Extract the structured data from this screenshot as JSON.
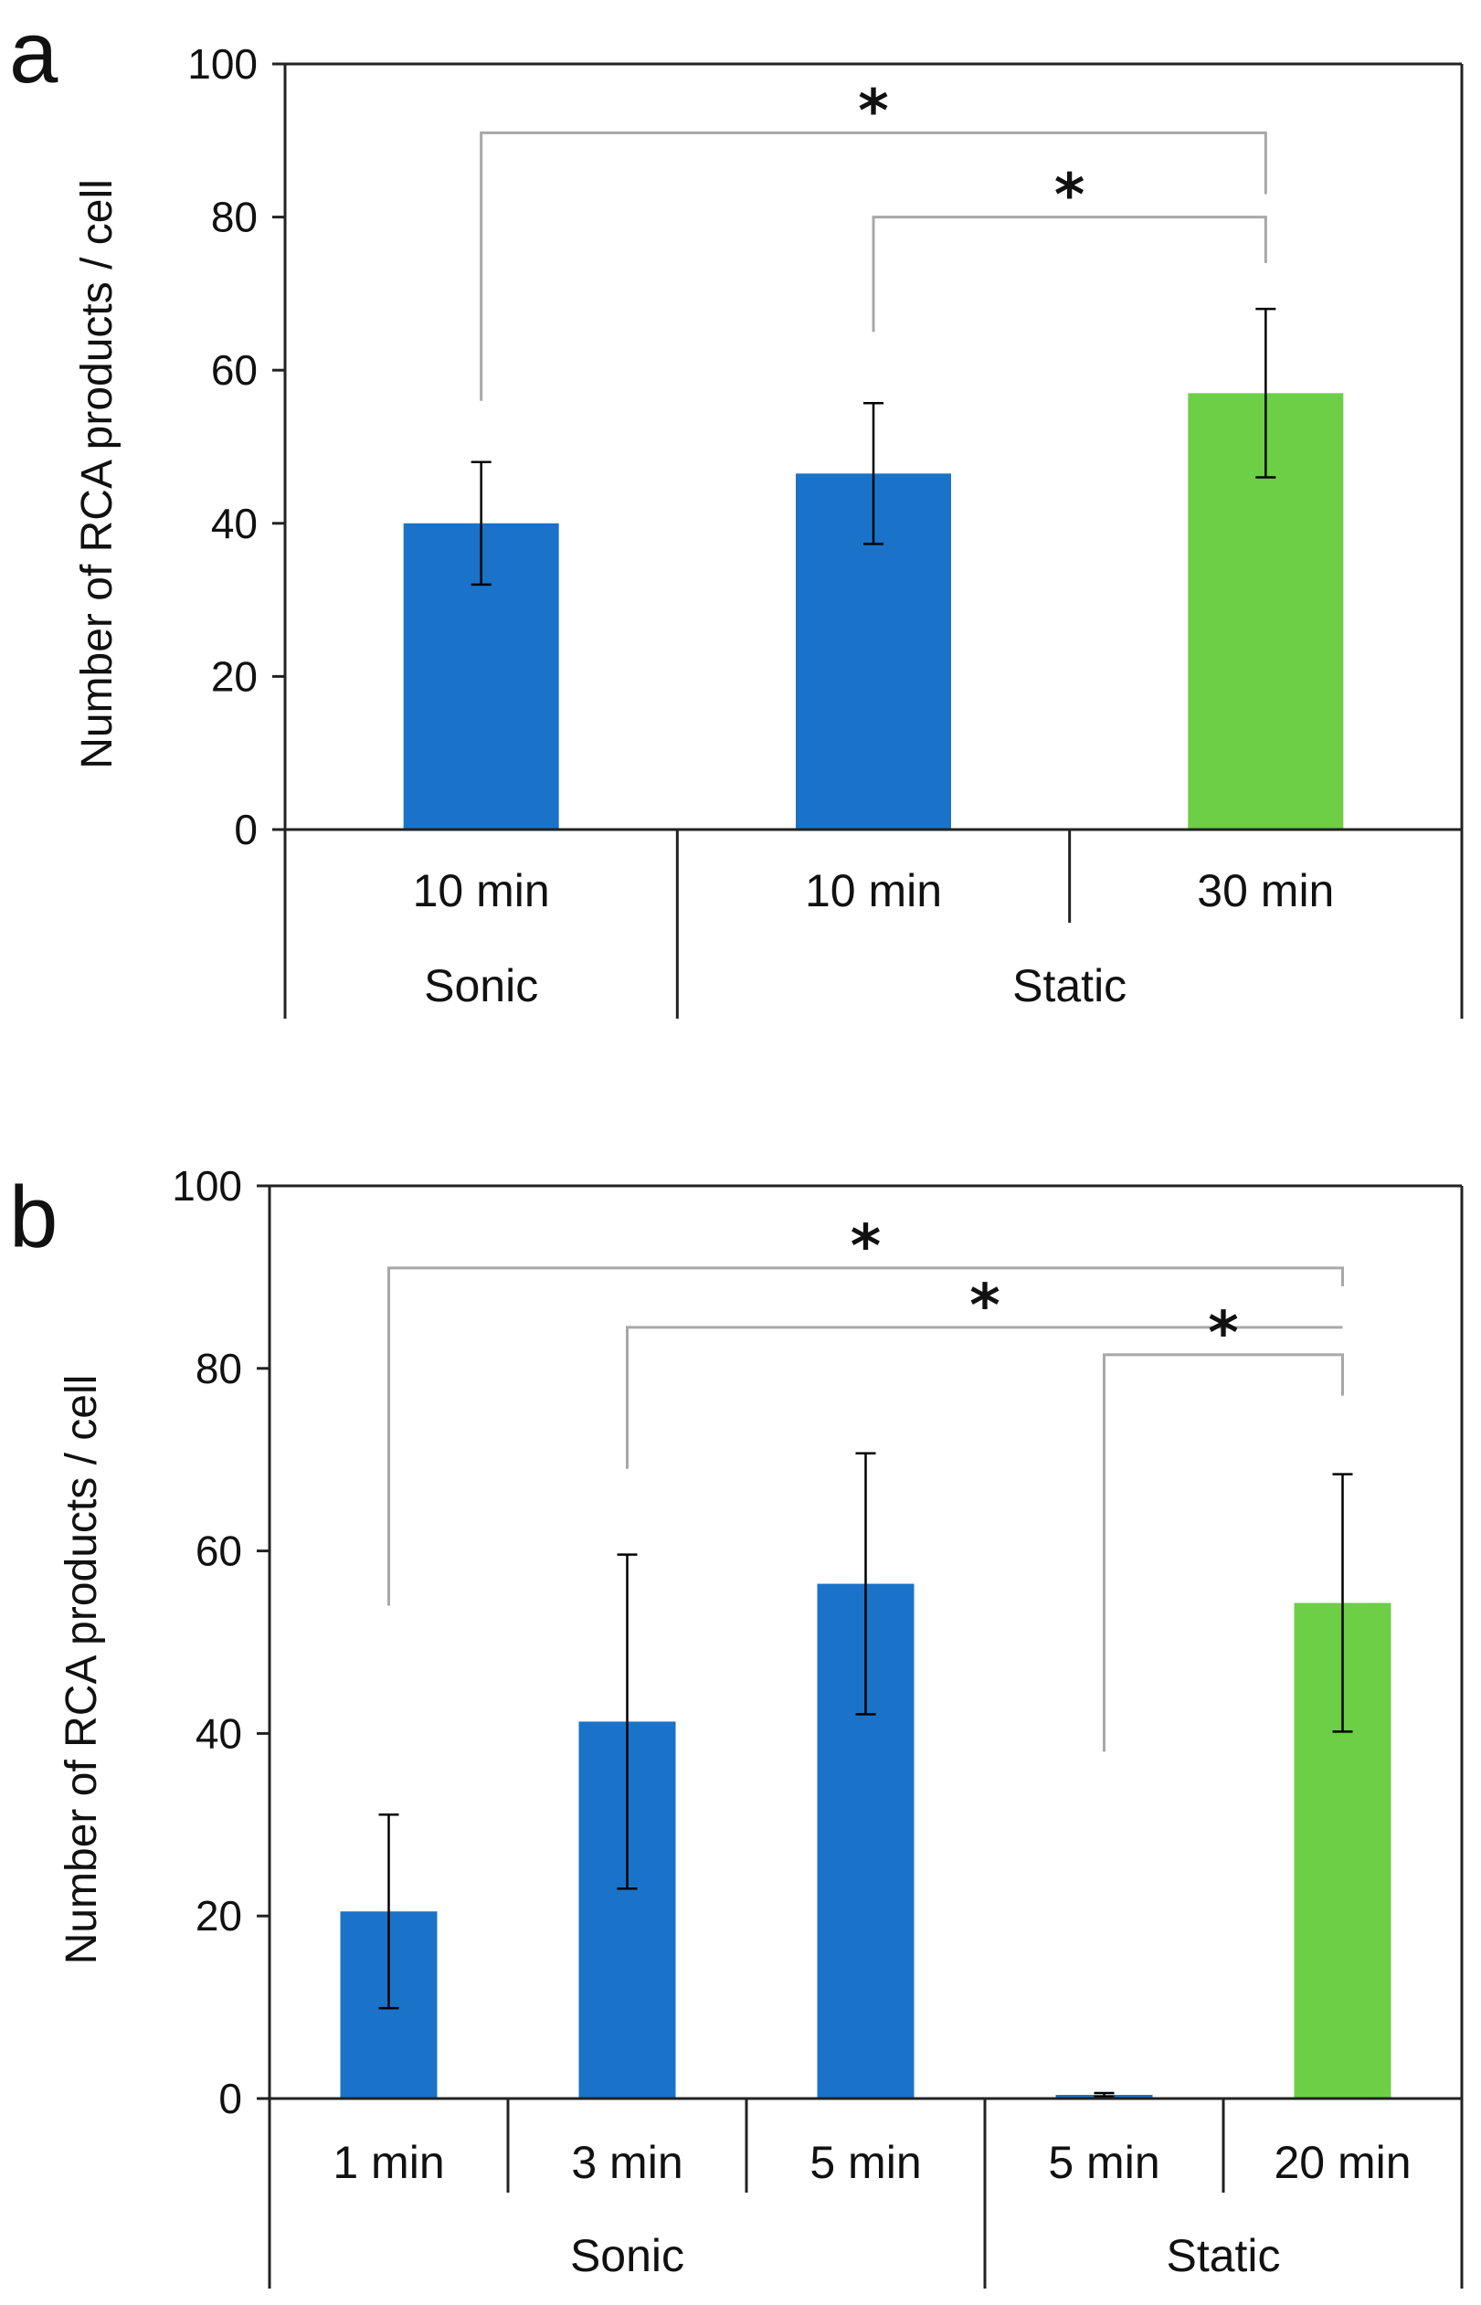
{
  "chart_data": [
    {
      "type": "bar",
      "panel_label": "a",
      "ylabel": "Number of RCA products / cell",
      "ylim": [
        0,
        100
      ],
      "yticks": [
        "0",
        "20",
        "40",
        "60",
        "80",
        "100"
      ],
      "categories": [
        "10 min",
        "10 min",
        "30 min"
      ],
      "groups": [
        {
          "label": "Sonic",
          "span": [
            0,
            0
          ]
        },
        {
          "label": "Static",
          "span": [
            1,
            2
          ]
        }
      ],
      "values": [
        40,
        46.5,
        57
      ],
      "errors": [
        8,
        9.2,
        11
      ],
      "bar_colors": [
        "#1a73c9",
        "#1a73c9",
        "#6ccf45"
      ],
      "significance": [
        {
          "from": 0,
          "to": 2,
          "label": "*",
          "level": 91,
          "left_end": 56,
          "right_end": 83
        },
        {
          "from": 1,
          "to": 2,
          "label": "*",
          "level": 80,
          "left_end": 65,
          "right_end": 74
        }
      ]
    },
    {
      "type": "bar",
      "panel_label": "b",
      "ylabel": "Number of RCA products / cell",
      "ylim": [
        0,
        100
      ],
      "yticks": [
        "0",
        "20",
        "40",
        "60",
        "80",
        "100"
      ],
      "categories": [
        "1 min",
        "3 min",
        "5 min",
        "5 min",
        "20 min"
      ],
      "groups": [
        {
          "label": "Sonic",
          "span": [
            0,
            2
          ]
        },
        {
          "label": "Static",
          "span": [
            3,
            4
          ]
        }
      ],
      "values": [
        20.5,
        41.3,
        56.4,
        0.4,
        54.3
      ],
      "errors": [
        10.6,
        18.3,
        14.3,
        0.2,
        14.1
      ],
      "bar_colors": [
        "#1a73c9",
        "#1a73c9",
        "#1a73c9",
        "#1a73c9",
        "#6ccf45"
      ],
      "significance": [
        {
          "from": 0,
          "to": 4,
          "label": "*",
          "level": 91,
          "left_end": 54,
          "right_end": 89
        },
        {
          "from": 1,
          "to": 4,
          "label": "*",
          "level": 84.5,
          "left_end": 69,
          "right_end": 84.5
        },
        {
          "from": 3,
          "to": 4,
          "label": "*",
          "level": 81.5,
          "left_end": 38,
          "right_end": 77
        }
      ]
    }
  ]
}
